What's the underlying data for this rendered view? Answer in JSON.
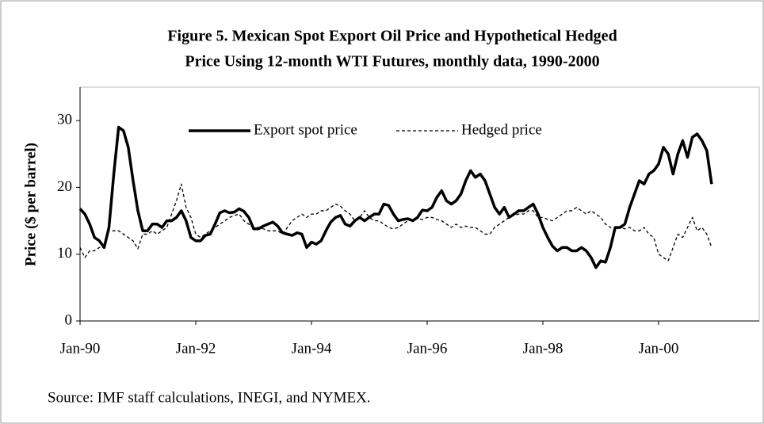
{
  "chart_data": {
    "type": "line",
    "title": "Figure 5. Mexican Spot Export Oil Price and Hypothetical Hedged",
    "subtitle": "Price Using 12-month WTI Futures, monthly data, 1990-2000",
    "y_label": "Price ($ per barrel)",
    "source": "Source: IMF staff calculations, INEGI, and NYMEX.",
    "categories": [
      "Jan-90",
      null,
      null,
      null,
      null,
      null,
      null,
      null,
      null,
      null,
      null,
      null,
      null,
      null,
      null,
      null,
      null,
      null,
      null,
      null,
      null,
      null,
      null,
      null,
      "Jan-92",
      null,
      null,
      null,
      null,
      null,
      null,
      null,
      null,
      null,
      null,
      null,
      null,
      null,
      null,
      null,
      null,
      null,
      null,
      null,
      null,
      null,
      null,
      null,
      "Jan-94",
      null,
      null,
      null,
      null,
      null,
      null,
      null,
      null,
      null,
      null,
      null,
      null,
      null,
      null,
      null,
      null,
      null,
      null,
      null,
      null,
      null,
      null,
      null,
      "Jan-96",
      null,
      null,
      null,
      null,
      null,
      null,
      null,
      null,
      null,
      null,
      null,
      null,
      null,
      null,
      null,
      null,
      null,
      null,
      null,
      null,
      null,
      null,
      null,
      "Jan-98",
      null,
      null,
      null,
      null,
      null,
      null,
      null,
      null,
      null,
      null,
      null,
      null,
      null,
      null,
      null,
      null,
      null,
      null,
      null,
      null,
      null,
      null,
      null,
      "Jan-00",
      null,
      null,
      null,
      null,
      null,
      null,
      null,
      null,
      null,
      null,
      null
    ],
    "series": [
      {
        "name": "Export spot price",
        "color": "#000000",
        "dashed": false,
        "values": [
          16.8,
          16,
          14.5,
          12.5,
          12,
          11,
          14,
          22,
          29,
          28.5,
          26,
          21,
          16.5,
          13.5,
          13.5,
          14.5,
          14.5,
          14,
          15,
          15,
          15.5,
          16.5,
          15,
          12.5,
          12,
          12,
          12.8,
          13,
          14.5,
          16.2,
          16.5,
          16.2,
          16.3,
          16.8,
          16.4,
          15.5,
          13.8,
          13.8,
          14.2,
          14.5,
          14.8,
          14.2,
          13.2,
          13,
          12.8,
          13.2,
          13,
          11,
          11.8,
          11.5,
          12,
          13.5,
          14.8,
          15.5,
          15.8,
          14.5,
          14.2,
          15,
          15.5,
          15,
          15.5,
          16,
          16,
          17.5,
          17.3,
          16,
          15,
          15.2,
          15.3,
          15,
          15.5,
          16.6,
          16.5,
          17,
          18.5,
          19.5,
          18,
          17.5,
          18,
          19,
          21,
          22.5,
          21.5,
          22,
          21,
          19,
          17,
          16,
          17,
          15.5,
          16,
          16.5,
          16.5,
          17,
          17.5,
          16,
          14,
          12.5,
          11.2,
          10.5,
          11,
          11,
          10.5,
          10.5,
          11,
          10.5,
          9.5,
          8,
          9,
          8.8,
          11,
          14,
          14,
          14.5,
          17,
          19,
          21,
          20.5,
          22,
          22.5,
          23.5,
          26,
          25,
          22,
          25,
          27,
          24.5,
          27.5,
          28,
          27,
          25.5,
          20.5
        ]
      },
      {
        "name": "Hedged price",
        "color": "#000000",
        "dashed": true,
        "values": [
          11,
          9.5,
          10.5,
          10.5,
          11,
          11,
          13.5,
          13.5,
          13.5,
          13,
          12.5,
          12,
          10.8,
          13,
          13,
          13.5,
          13,
          13.5,
          14,
          16,
          18,
          20.5,
          17,
          15.5,
          13,
          12.5,
          13,
          13.5,
          14,
          14.5,
          15,
          15.5,
          15.8,
          16,
          15,
          14.5,
          14,
          14,
          13.8,
          13.5,
          13.5,
          13.5,
          13,
          14,
          15,
          15.5,
          16,
          15.5,
          16,
          16,
          16.5,
          16.5,
          17,
          17.5,
          17.2,
          16.5,
          16,
          15,
          15.5,
          16.5,
          15.5,
          15,
          15,
          14.5,
          14,
          13.8,
          14,
          14.5,
          15,
          15.3,
          15.3,
          15.2,
          15.5,
          15.5,
          15.2,
          15,
          14.5,
          14,
          14.5,
          14,
          14.2,
          14,
          14,
          13.5,
          13,
          13,
          14,
          14.5,
          15,
          15.5,
          15.8,
          16,
          16,
          16.5,
          16.5,
          15.5,
          15.5,
          15.2,
          15,
          15.5,
          16,
          16.5,
          16.5,
          17,
          16.5,
          16,
          16.5,
          16,
          15.5,
          14.5,
          14,
          13.5,
          14,
          13.8,
          14,
          13.5,
          13.5,
          14,
          13,
          12.5,
          10,
          9.5,
          9,
          11,
          13,
          12.5,
          14,
          15.5,
          13.5,
          14,
          13,
          11
        ]
      }
    ],
    "ylim": [
      0,
      35
    ],
    "yticks": [
      0,
      10,
      20,
      30
    ]
  }
}
